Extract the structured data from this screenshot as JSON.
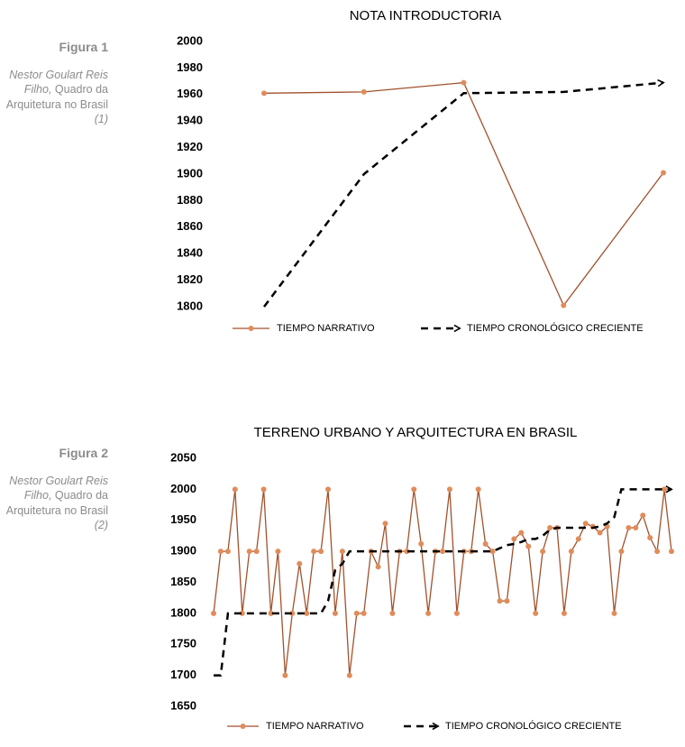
{
  "figures": [
    {
      "label": "Figura 1",
      "author": "Nestor Goulart Reis Filho,",
      "work": "Quadro da Arquitetura no Brasil",
      "ref": "(1)"
    },
    {
      "label": "Figura 2",
      "author": "Nestor Goulart Reis Filho,",
      "work": "Quadro da Arquitetura no Brasil",
      "ref": "(2)"
    }
  ],
  "chart_data": [
    {
      "type": "line",
      "title": "NOTA INTRODUCTORIA",
      "categories": [
        null,
        null,
        null,
        null,
        null
      ],
      "series": [
        {
          "name": "TIEMPO NARRATIVO",
          "color": "#a0522d",
          "marker_color": "#e08c5a",
          "style": "solid",
          "values": [
            1961,
            1962,
            1969,
            1801,
            1901
          ]
        },
        {
          "name": "TIEMPO CRONOLÓGICO CRECIENTE",
          "color": "#000000",
          "style": "dashed-arrow",
          "values": [
            1800,
            1900,
            1961,
            1962,
            1969
          ]
        }
      ],
      "ylim": [
        1800,
        2000
      ],
      "yticks": [
        1800,
        1820,
        1840,
        1860,
        1880,
        1900,
        1920,
        1940,
        1960,
        1980,
        2000
      ],
      "grid": false,
      "legend": "bottom"
    },
    {
      "type": "line",
      "title": "TERRENO URBANO Y ARQUITECTURA EN BRASIL",
      "categories": [
        null,
        null,
        null,
        null,
        null,
        null,
        null,
        null,
        null,
        null,
        null,
        null,
        null,
        null,
        null,
        null,
        null,
        null,
        null,
        null,
        null,
        null,
        null,
        null,
        null,
        null,
        null,
        null,
        null,
        null,
        null,
        null,
        null,
        null,
        null,
        null,
        null,
        null,
        null,
        null,
        null,
        null,
        null,
        null,
        null,
        null,
        null,
        null,
        null,
        null,
        null,
        null,
        null,
        null,
        null,
        null,
        null,
        null,
        null,
        null,
        null,
        null,
        null,
        null,
        null
      ],
      "series": [
        {
          "name": "TIEMPO NARRATIVO",
          "color": "#a0522d",
          "marker_color": "#e08c5a",
          "style": "solid",
          "values": [
            1800,
            1900,
            1900,
            2000,
            1800,
            1900,
            1900,
            2000,
            1800,
            1900,
            1700,
            1800,
            1880,
            1800,
            1900,
            1900,
            2000,
            1800,
            1900,
            1700,
            1800,
            1800,
            1900,
            1875,
            1945,
            1800,
            1900,
            1900,
            2000,
            1912,
            1800,
            1900,
            1900,
            2000,
            1800,
            1900,
            1900,
            2000,
            1912,
            1900,
            1820,
            1820,
            1920,
            1930,
            1908,
            1800,
            1900,
            1938,
            1938,
            1800,
            1900,
            1920,
            1945,
            1940,
            1930,
            1940,
            1800,
            1900,
            1938,
            1938,
            1958,
            1922,
            1900,
            2000,
            1900
          ]
        },
        {
          "name": "TIEMPO CRONOLÓGICO CRECIENTE",
          "color": "#000000",
          "style": "dashed-arrow",
          "values": [
            1700,
            1700,
            1800,
            1800,
            1800,
            1800,
            1800,
            1800,
            1800,
            1800,
            1800,
            1800,
            1800,
            1800,
            1800,
            1800,
            1820,
            1870,
            1880,
            1900,
            1900,
            1900,
            1900,
            1900,
            1900,
            1900,
            1900,
            1900,
            1900,
            1900,
            1900,
            1900,
            1900,
            1900,
            1900,
            1900,
            1900,
            1900,
            1900,
            1900,
            1905,
            1910,
            1912,
            1915,
            1920,
            1920,
            1925,
            1935,
            1938,
            1938,
            1938,
            1938,
            1938,
            1938,
            1940,
            1945,
            1955,
            2000,
            2000,
            2000,
            2000,
            2000,
            2000,
            2000,
            2000
          ]
        }
      ],
      "ylim": [
        1650,
        2050
      ],
      "yticks": [
        1650,
        1700,
        1750,
        1800,
        1850,
        1900,
        1950,
        2000,
        2050
      ],
      "grid": false,
      "legend": "bottom"
    }
  ]
}
